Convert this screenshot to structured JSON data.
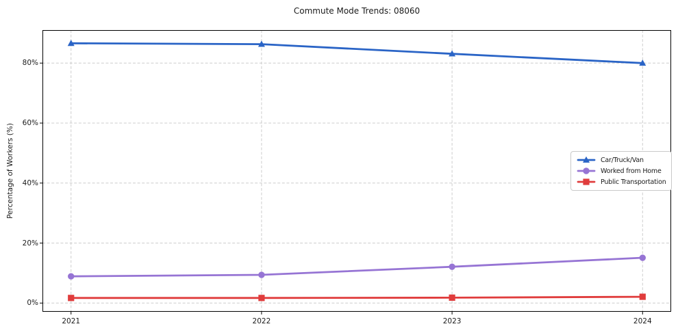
{
  "chart_data": {
    "type": "line",
    "title": "Commute Mode Trends: 08060",
    "xlabel": "",
    "ylabel": "Percentage of Workers (%)",
    "x": [
      2021,
      2022,
      2023,
      2024
    ],
    "x_tick_labels": [
      "2021",
      "2022",
      "2023",
      "2024"
    ],
    "y_ticks": [
      0,
      20,
      40,
      60,
      80
    ],
    "y_tick_labels": [
      "0%",
      "20%",
      "40%",
      "60%",
      "80%"
    ],
    "xlim": [
      2020.85,
      2024.15
    ],
    "ylim": [
      -2.9,
      91.0
    ],
    "grid": true,
    "legend_position": "center-right",
    "series": [
      {
        "name": "Car/Truck/Van",
        "color": "#2a64c6",
        "marker": "triangle",
        "values": [
          86.6,
          86.3,
          83.1,
          80.0
        ]
      },
      {
        "name": "Worked from Home",
        "color": "#9674d4",
        "marker": "circle",
        "values": [
          8.9,
          9.4,
          12.1,
          15.1
        ]
      },
      {
        "name": "Public Transportation",
        "color": "#e03c3c",
        "marker": "square",
        "values": [
          1.7,
          1.7,
          1.8,
          2.1
        ]
      }
    ],
    "colors": {
      "grid": "#cccccc",
      "spine": "#000000",
      "text": "#1a1a1a",
      "background": "#ffffff"
    }
  }
}
